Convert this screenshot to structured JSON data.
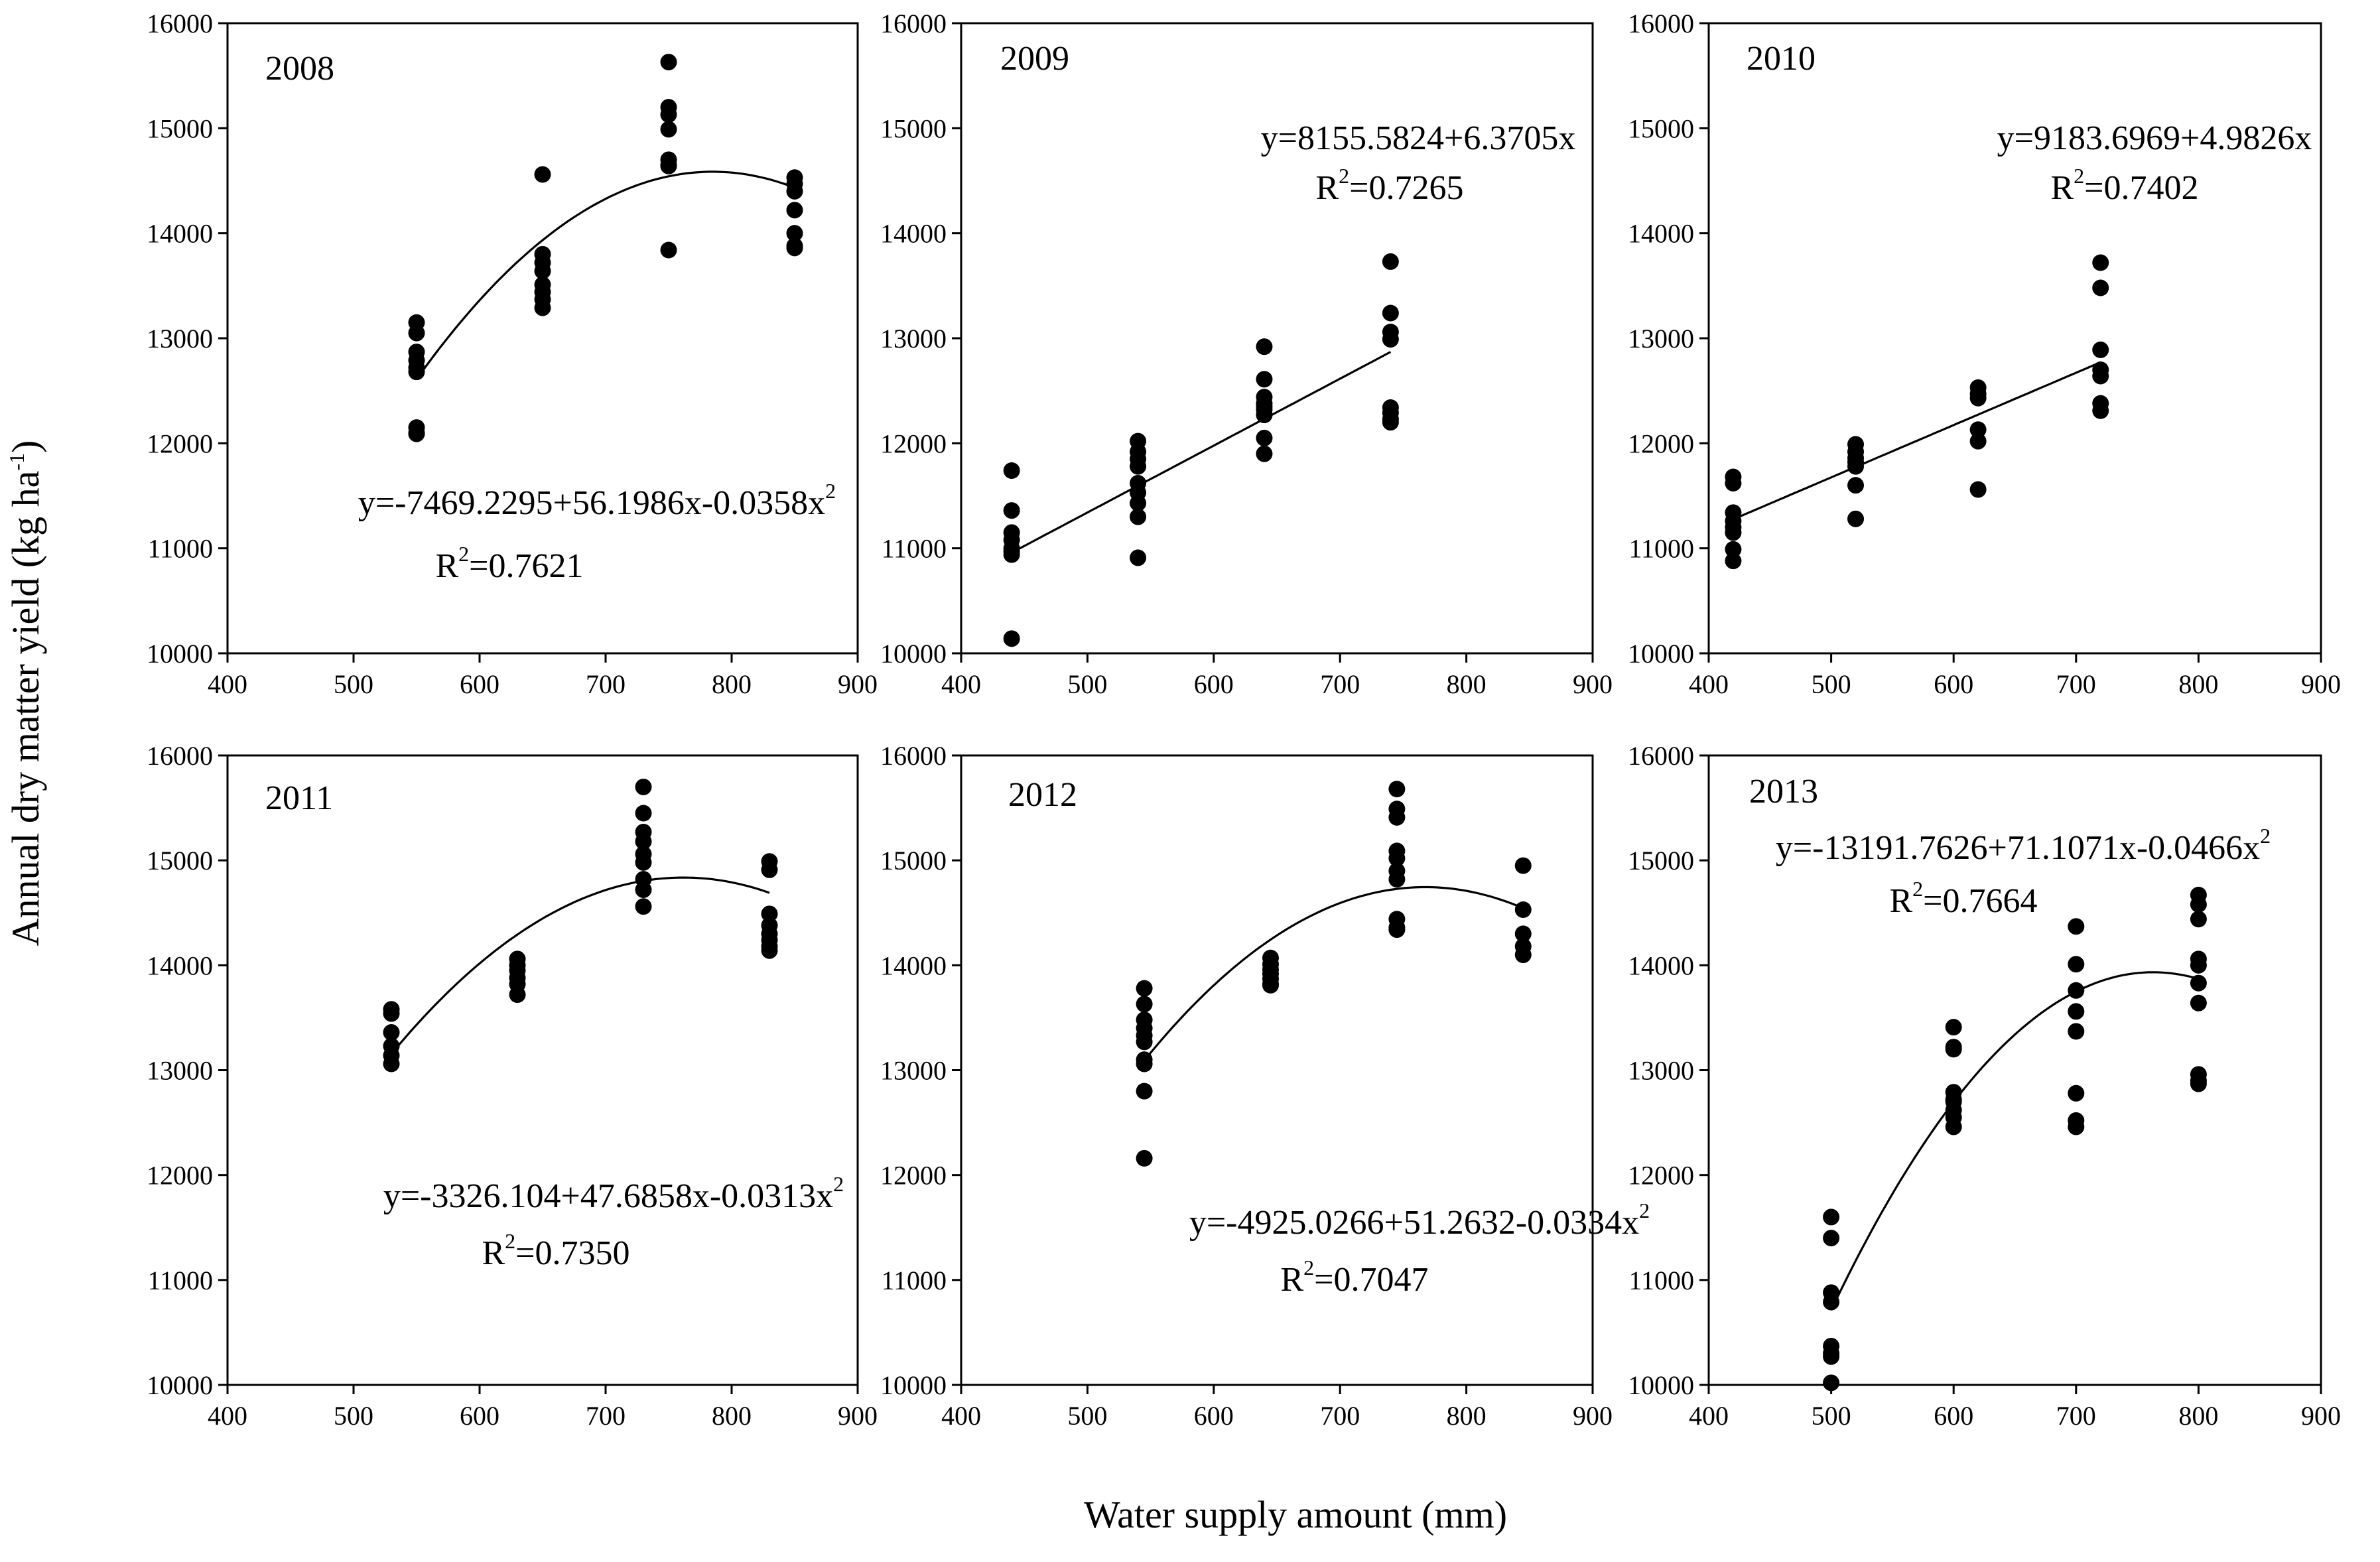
{
  "figure": {
    "xlabel": "Water supply amount (mm)",
    "ylabel": {
      "main": "Annual dry matter yield (kg ha",
      "sup": "-1",
      "close": ")"
    }
  },
  "chart_data": [
    {
      "type": "scatter",
      "panel": "2008",
      "x_ticks": [
        400,
        500,
        600,
        700,
        800,
        900
      ],
      "y_ticks": [
        10000,
        11000,
        12000,
        13000,
        14000,
        15000,
        16000
      ],
      "xlim": [
        400,
        900
      ],
      "ylim": [
        10000,
        16000
      ],
      "series": [
        {
          "x": [
            550,
            550,
            550,
            550,
            550,
            550,
            550,
            550,
            550,
            650,
            650,
            650,
            650,
            650,
            650,
            650,
            650,
            750,
            750,
            750,
            750,
            750,
            750,
            750,
            750,
            850,
            850,
            850,
            850,
            850,
            850,
            850
          ],
          "y": [
            13150,
            13050,
            12870,
            12790,
            12720,
            12680,
            12150,
            12100,
            12090,
            14560,
            13800,
            13720,
            13640,
            13510,
            13440,
            13370,
            13290,
            15630,
            15200,
            15130,
            14990,
            14700,
            14650,
            14640,
            13840,
            14530,
            14470,
            14400,
            14220,
            14000,
            13880,
            13860
          ]
        }
      ],
      "fit": {
        "kind": "quadratic",
        "coef": [
          -7469.2295,
          56.1986,
          -0.0358
        ],
        "x_range": [
          550,
          850
        ],
        "equation": {
          "main": "y=-7469.2295+56.1986x-0.0358x",
          "sup": "2"
        },
        "r2": {
          "lead": "R",
          "sup": "2",
          "tail": "=0.7621"
        }
      }
    },
    {
      "type": "scatter",
      "panel": "2009",
      "x_ticks": [
        400,
        500,
        600,
        700,
        800,
        900
      ],
      "y_ticks": [
        10000,
        11000,
        12000,
        13000,
        14000,
        15000,
        16000
      ],
      "xlim": [
        400,
        900
      ],
      "ylim": [
        10000,
        16000
      ],
      "series": [
        {
          "x": [
            440,
            440,
            440,
            440,
            440,
            440,
            440,
            440,
            540,
            540,
            540,
            540,
            540,
            540,
            540,
            540,
            540,
            640,
            640,
            640,
            640,
            640,
            640,
            640,
            640,
            640,
            740,
            740,
            740,
            740,
            740,
            740,
            740,
            740
          ],
          "y": [
            11740,
            11360,
            11150,
            11080,
            11000,
            10970,
            10940,
            10140,
            12020,
            11920,
            11850,
            11620,
            11530,
            11430,
            11300,
            10910,
            11780,
            12920,
            12610,
            12440,
            12380,
            12320,
            12270,
            12050,
            11900,
            12350,
            13730,
            13240,
            13060,
            12990,
            12340,
            12290,
            12230,
            12200
          ]
        }
      ],
      "fit": {
        "kind": "linear",
        "coef": [
          8155.5824,
          6.3705
        ],
        "x_range": [
          440,
          740
        ],
        "equation": {
          "main": "y=8155.5824+6.3705x",
          "sup": ""
        },
        "r2": {
          "lead": "R",
          "sup": "2",
          "tail": "=0.7265"
        }
      }
    },
    {
      "type": "scatter",
      "panel": "2010",
      "x_ticks": [
        400,
        500,
        600,
        700,
        800,
        900
      ],
      "y_ticks": [
        10000,
        11000,
        12000,
        13000,
        14000,
        15000,
        16000
      ],
      "xlim": [
        400,
        900
      ],
      "ylim": [
        10000,
        16000
      ],
      "series": [
        {
          "x": [
            420,
            420,
            420,
            420,
            420,
            420,
            420,
            420,
            520,
            520,
            520,
            520,
            520,
            520,
            520,
            620,
            620,
            620,
            620,
            620,
            620,
            720,
            720,
            720,
            720,
            720,
            720,
            720
          ],
          "y": [
            11680,
            11620,
            11340,
            11260,
            11200,
            11150,
            10990,
            10880,
            11990,
            11920,
            11860,
            11820,
            11780,
            11600,
            11280,
            12530,
            12470,
            12430,
            12130,
            12020,
            11560,
            13720,
            13480,
            12890,
            12700,
            12640,
            12380,
            12310
          ]
        }
      ],
      "fit": {
        "kind": "linear",
        "coef": [
          9183.6969,
          4.9826
        ],
        "x_range": [
          420,
          720
        ],
        "equation": {
          "main": "y=9183.6969+4.9826x",
          "sup": ""
        },
        "r2": {
          "lead": "R",
          "sup": "2",
          "tail": "=0.7402"
        }
      }
    },
    {
      "type": "scatter",
      "panel": "2011",
      "x_ticks": [
        400,
        500,
        600,
        700,
        800,
        900
      ],
      "y_ticks": [
        10000,
        11000,
        12000,
        13000,
        14000,
        15000,
        16000
      ],
      "xlim": [
        400,
        900
      ],
      "ylim": [
        10000,
        16000
      ],
      "series": [
        {
          "x": [
            530,
            530,
            530,
            530,
            530,
            530,
            630,
            630,
            630,
            630,
            630,
            630,
            730,
            730,
            730,
            730,
            730,
            730,
            730,
            730,
            730,
            830,
            830,
            830,
            830,
            830,
            830,
            830,
            830
          ],
          "y": [
            13580,
            13540,
            13360,
            13230,
            13140,
            13060,
            14060,
            14000,
            13950,
            13880,
            13820,
            13720,
            15700,
            15450,
            15270,
            15180,
            15060,
            14980,
            14820,
            14720,
            14560,
            14990,
            14910,
            14490,
            14380,
            14300,
            14240,
            14180,
            14140
          ]
        }
      ],
      "fit": {
        "kind": "quadratic",
        "coef": [
          -3326.104,
          47.6858,
          -0.0313
        ],
        "x_range": [
          530,
          830
        ],
        "equation": {
          "main": "y=-3326.104+47.6858x-0.0313x",
          "sup": "2"
        },
        "r2": {
          "lead": "R",
          "sup": "2",
          "tail": "=0.7350"
        }
      }
    },
    {
      "type": "scatter",
      "panel": "2012",
      "x_ticks": [
        400,
        500,
        600,
        700,
        800,
        900
      ],
      "y_ticks": [
        10000,
        11000,
        12000,
        13000,
        14000,
        15000,
        16000
      ],
      "xlim": [
        400,
        900
      ],
      "ylim": [
        10000,
        16000
      ],
      "series": [
        {
          "x": [
            545,
            545,
            545,
            545,
            545,
            545,
            545,
            545,
            545,
            545,
            645,
            645,
            645,
            645,
            645,
            645,
            645,
            745,
            745,
            745,
            745,
            745,
            745,
            745,
            745,
            745,
            745,
            845,
            845,
            845,
            845,
            845
          ],
          "y": [
            13780,
            13630,
            13480,
            13400,
            13330,
            13270,
            13100,
            13060,
            12800,
            12160,
            14070,
            14010,
            13960,
            13920,
            13870,
            13820,
            13810,
            15680,
            15490,
            15410,
            15090,
            15020,
            14900,
            14820,
            14440,
            14360,
            14340,
            14950,
            14530,
            14300,
            14180,
            14100
          ]
        }
      ],
      "fit": {
        "kind": "quadratic",
        "coef": [
          -4925.0266,
          51.2632,
          -0.0334
        ],
        "x_range": [
          545,
          845
        ],
        "equation": {
          "main": "y=-4925.0266+51.2632-0.0334x",
          "sup": "2"
        },
        "r2": {
          "lead": "R",
          "sup": "2",
          "tail": "=0.7047"
        }
      }
    },
    {
      "type": "scatter",
      "panel": "2013",
      "x_ticks": [
        400,
        500,
        600,
        700,
        800,
        900
      ],
      "y_ticks": [
        10000,
        11000,
        12000,
        13000,
        14000,
        15000,
        16000
      ],
      "xlim": [
        400,
        900
      ],
      "ylim": [
        10000,
        16000
      ],
      "series": [
        {
          "x": [
            500,
            500,
            500,
            500,
            500,
            500,
            500,
            500,
            600,
            600,
            600,
            600,
            600,
            600,
            600,
            600,
            600,
            700,
            700,
            700,
            700,
            700,
            700,
            700,
            700,
            800,
            800,
            800,
            800,
            800,
            800,
            800,
            800,
            800,
            800
          ],
          "y": [
            11600,
            11400,
            10880,
            10790,
            10370,
            10300,
            10270,
            10020,
            13410,
            13220,
            13200,
            12790,
            12720,
            12620,
            12550,
            12460,
            12700,
            14370,
            14010,
            13760,
            13560,
            13370,
            12780,
            12520,
            12460,
            14670,
            14580,
            14440,
            14060,
            14000,
            13830,
            13640,
            12960,
            12900,
            12870
          ]
        }
      ],
      "fit": {
        "kind": "quadratic",
        "coef": [
          -13191.7626,
          71.1071,
          -0.0466
        ],
        "x_range": [
          500,
          800
        ],
        "equation": {
          "main": "y=-13191.7626+71.1071x-0.0466x",
          "sup": "2"
        },
        "r2": {
          "lead": "R",
          "sup": "2",
          "tail": "=0.7664"
        }
      }
    }
  ]
}
